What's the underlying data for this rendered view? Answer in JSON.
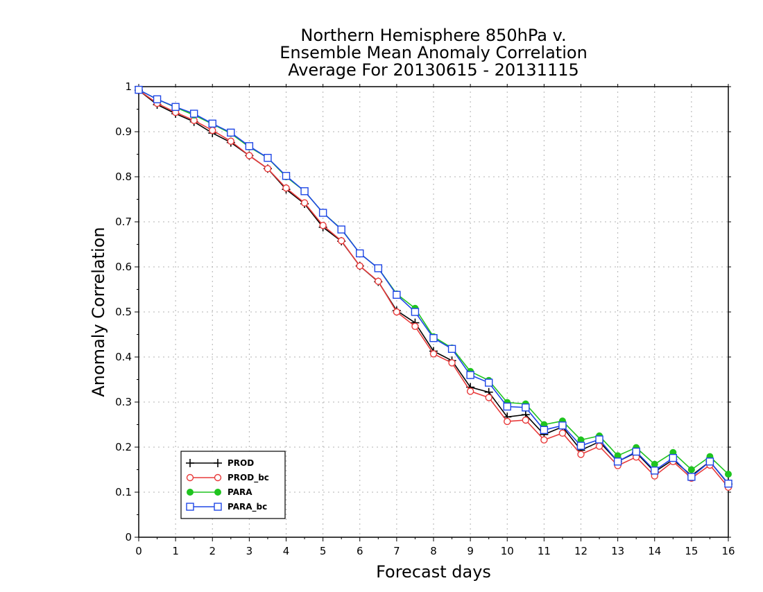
{
  "chart_data": {
    "type": "line",
    "title_lines": [
      "Northern Hemisphere 850hPa v.",
      "Ensemble Mean Anomaly Correlation",
      "Average For 20130615 - 20131115"
    ],
    "xlabel": "Forecast days",
    "ylabel": "Anomaly Correlation",
    "xlim": [
      0,
      16
    ],
    "ylim": [
      0,
      1
    ],
    "x_ticks": [
      "0",
      "1",
      "2",
      "3",
      "4",
      "5",
      "6",
      "7",
      "8",
      "9",
      "10",
      "11",
      "12",
      "13",
      "14",
      "15",
      "16"
    ],
    "y_ticks": [
      "0",
      "0.1",
      "0.2",
      "0.3",
      "0.4",
      "0.5",
      "0.6",
      "0.7",
      "0.8",
      "0.9",
      "1"
    ],
    "grid": true,
    "legend_position": "bottom-left",
    "x": [
      0,
      0.5,
      1,
      1.5,
      2,
      2.5,
      3,
      3.5,
      4,
      4.5,
      5,
      5.5,
      6,
      6.5,
      7,
      7.5,
      8,
      8.5,
      9,
      9.5,
      10,
      10.5,
      11,
      11.5,
      12,
      12.5,
      13,
      13.5,
      14,
      14.5,
      15,
      15.5,
      16
    ],
    "series": [
      {
        "name": "PROD",
        "color": "#000000",
        "marker": "plus",
        "values": [
          0.992,
          0.96,
          0.94,
          0.922,
          0.897,
          0.876,
          0.847,
          0.818,
          0.772,
          0.74,
          0.688,
          0.657,
          0.602,
          0.567,
          0.503,
          0.476,
          0.413,
          0.392,
          0.333,
          0.322,
          0.267,
          0.272,
          0.228,
          0.245,
          0.193,
          0.212,
          0.168,
          0.188,
          0.145,
          0.172,
          0.137,
          0.168,
          0.118
        ]
      },
      {
        "name": "PROD_bc",
        "color": "#e83a3a",
        "marker": "open-circle",
        "values": [
          0.992,
          0.963,
          0.943,
          0.925,
          0.903,
          0.879,
          0.847,
          0.818,
          0.775,
          0.742,
          0.692,
          0.658,
          0.602,
          0.568,
          0.5,
          0.468,
          0.407,
          0.387,
          0.324,
          0.31,
          0.257,
          0.26,
          0.216,
          0.231,
          0.184,
          0.202,
          0.159,
          0.178,
          0.136,
          0.168,
          0.131,
          0.16,
          0.111
        ]
      },
      {
        "name": "PARA",
        "color": "#1fc41f",
        "marker": "filled-circle",
        "values": [
          0.993,
          0.972,
          0.954,
          0.937,
          0.917,
          0.896,
          0.866,
          0.842,
          0.8,
          0.768,
          0.72,
          0.684,
          0.63,
          0.597,
          0.54,
          0.508,
          0.445,
          0.42,
          0.368,
          0.348,
          0.299,
          0.296,
          0.25,
          0.258,
          0.216,
          0.225,
          0.181,
          0.199,
          0.162,
          0.188,
          0.15,
          0.179,
          0.14
        ]
      },
      {
        "name": "PARA_bc",
        "color": "#1e46e6",
        "marker": "open-square",
        "values": [
          0.993,
          0.972,
          0.955,
          0.94,
          0.918,
          0.898,
          0.868,
          0.842,
          0.802,
          0.768,
          0.72,
          0.683,
          0.63,
          0.597,
          0.538,
          0.5,
          0.442,
          0.418,
          0.36,
          0.343,
          0.29,
          0.288,
          0.238,
          0.248,
          0.203,
          0.217,
          0.168,
          0.19,
          0.148,
          0.176,
          0.134,
          0.168,
          0.119
        ]
      }
    ]
  }
}
